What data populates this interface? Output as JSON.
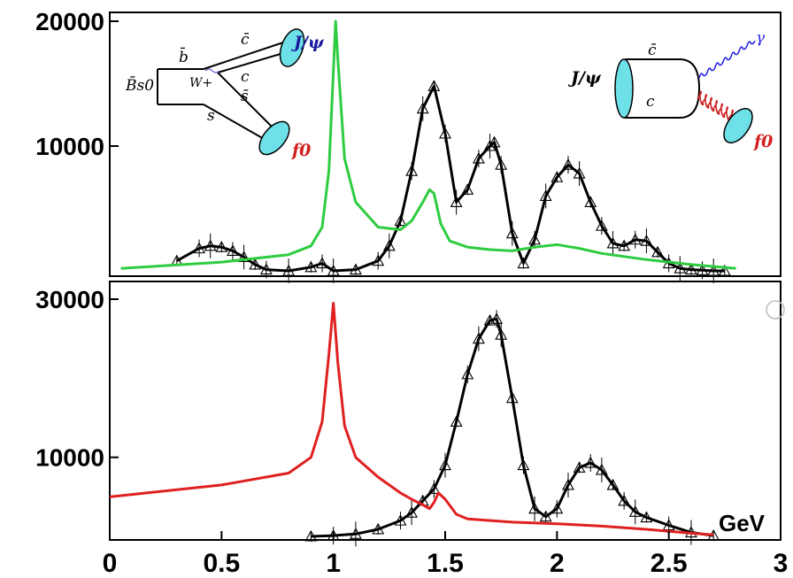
{
  "chart_data": [
    {
      "panel": "top",
      "type": "line",
      "xlim": [
        0,
        3
      ],
      "ylim": [
        0,
        20000
      ],
      "y_ticks": [
        {
          "value": 20000,
          "label": "20000"
        },
        {
          "value": 10000,
          "label": "10000"
        }
      ],
      "colors": {
        "data": "#000000",
        "curve": "#2ecc40"
      },
      "series": [
        {
          "role": "data-fit",
          "color": "#000000",
          "marker": "triangle",
          "x": [
            0.3,
            0.4,
            0.45,
            0.5,
            0.55,
            0.6,
            0.65,
            0.7,
            0.8,
            0.9,
            0.95,
            1.0,
            1.1,
            1.2,
            1.25,
            1.3,
            1.35,
            1.4,
            1.45,
            1.5,
            1.55,
            1.6,
            1.65,
            1.7,
            1.72,
            1.75,
            1.8,
            1.85,
            1.9,
            1.95,
            2.0,
            2.05,
            2.1,
            2.15,
            2.2,
            2.25,
            2.3,
            2.35,
            2.4,
            2.45,
            2.5,
            2.55,
            2.6,
            2.65,
            2.7,
            2.75
          ],
          "y": [
            800,
            1800,
            2000,
            1900,
            1600,
            1100,
            500,
            100,
            0,
            300,
            600,
            0,
            100,
            800,
            2000,
            4000,
            8000,
            13000,
            14800,
            11000,
            5500,
            6500,
            9000,
            10000,
            10300,
            8500,
            3000,
            600,
            2500,
            6000,
            7500,
            8500,
            7800,
            5500,
            3600,
            2200,
            2000,
            2500,
            2400,
            1500,
            600,
            200,
            100,
            50,
            0,
            0
          ]
        },
        {
          "role": "curve",
          "color": "#2ecc40",
          "x": [
            0.05,
            0.5,
            0.8,
            0.9,
            0.95,
            0.98,
            1.0,
            1.01,
            1.02,
            1.05,
            1.1,
            1.2,
            1.3,
            1.35,
            1.4,
            1.43,
            1.45,
            1.48,
            1.52,
            1.6,
            1.7,
            1.8,
            1.9,
            2.0,
            2.1,
            2.2,
            2.4,
            2.6,
            2.8
          ],
          "y": [
            200,
            700,
            1300,
            2000,
            3500,
            8000,
            16000,
            20000,
            17000,
            9000,
            5500,
            3500,
            3300,
            4000,
            5500,
            6500,
            6200,
            3800,
            2400,
            1900,
            1700,
            1600,
            1900,
            2100,
            1800,
            1400,
            900,
            500,
            200
          ]
        }
      ]
    },
    {
      "panel": "bottom",
      "type": "line",
      "xlim": [
        0,
        3
      ],
      "ylim": [
        0,
        30000
      ],
      "x_ticks": [
        {
          "value": 0,
          "label": "0"
        },
        {
          "value": 0.5,
          "label": "0.5"
        },
        {
          "value": 1,
          "label": "1"
        },
        {
          "value": 1.5,
          "label": "1.5"
        },
        {
          "value": 2,
          "label": "2"
        },
        {
          "value": 2.5,
          "label": "2.5"
        },
        {
          "value": 3,
          "label": "3"
        }
      ],
      "y_ticks": [
        {
          "value": 30000,
          "label": "30000"
        },
        {
          "value": 10000,
          "label": "10000"
        }
      ],
      "xlabel": "GeV",
      "colors": {
        "data": "#000000",
        "curve": "#e02020"
      },
      "series": [
        {
          "role": "data-fit",
          "color": "#000000",
          "marker": "triangle",
          "x": [
            0.9,
            1.0,
            1.1,
            1.2,
            1.3,
            1.35,
            1.4,
            1.45,
            1.5,
            1.55,
            1.6,
            1.65,
            1.7,
            1.73,
            1.75,
            1.8,
            1.85,
            1.9,
            1.95,
            2.0,
            2.05,
            2.1,
            2.15,
            2.2,
            2.25,
            2.3,
            2.35,
            2.4,
            2.5,
            2.6,
            2.7
          ],
          "y": [
            0,
            100,
            300,
            900,
            2000,
            3000,
            4500,
            6000,
            9000,
            14500,
            20500,
            25000,
            27300,
            27500,
            25500,
            17500,
            9000,
            3500,
            2500,
            3500,
            6500,
            8700,
            9300,
            8400,
            6500,
            4500,
            3100,
            2400,
            1400,
            500,
            100
          ]
        },
        {
          "role": "curve",
          "color": "#e02020",
          "x": [
            0.0,
            0.5,
            0.8,
            0.9,
            0.95,
            0.98,
            1.0,
            1.02,
            1.05,
            1.1,
            1.2,
            1.3,
            1.35,
            1.4,
            1.43,
            1.45,
            1.47,
            1.5,
            1.55,
            1.6,
            1.8,
            2.0,
            2.2,
            2.4,
            2.6,
            2.7
          ],
          "y": [
            5000,
            6500,
            8000,
            10000,
            14500,
            23000,
            29500,
            22000,
            14000,
            10000,
            7500,
            5500,
            4700,
            4000,
            3500,
            4300,
            5500,
            4700,
            2800,
            2200,
            1800,
            1600,
            1300,
            900,
            400,
            200
          ]
        }
      ]
    }
  ],
  "diagram_left": {
    "b_bar": "b̄",
    "Bs0": "B̄s0",
    "W": "W+",
    "c_bar_top": "c̄",
    "c": "c",
    "s_bar": "s̄",
    "s": "s",
    "jpsi": "J/ψ",
    "f0": "f0",
    "colors": {
      "meson": "#6ee0e8",
      "jpsi_label": "#1a1aa0",
      "f0_label": "#d22020"
    }
  },
  "diagram_right": {
    "jpsi": "J/ψ",
    "c_bar": "c̄",
    "c": "c",
    "gamma": "γ",
    "f0": "f0",
    "colors": {
      "photon": "#2a2ae0",
      "gluon": "#d22020",
      "meson": "#6ee0e8"
    }
  }
}
